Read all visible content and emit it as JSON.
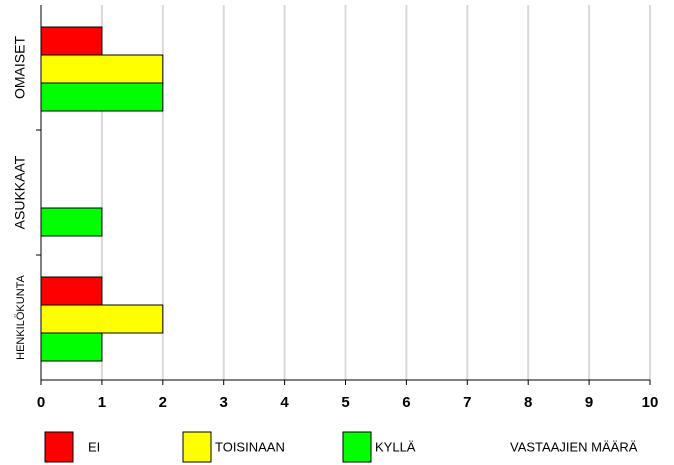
{
  "chart_data": {
    "type": "barh",
    "categories": [
      "OMAISET",
      "ASUKKAAT",
      "HENKILÖKUNTA"
    ],
    "series": [
      {
        "name": "EI",
        "color": "#ff0000",
        "values": [
          1,
          0,
          1
        ]
      },
      {
        "name": "TOISINAAN",
        "color": "#ffff00",
        "values": [
          2,
          0,
          2
        ]
      },
      {
        "name": "KYLLÄ",
        "color": "#00ff00",
        "values": [
          2,
          1,
          1
        ]
      }
    ],
    "xlabel": "VASTAAJIEN MÄÄRÄ",
    "xlim": [
      0,
      10
    ],
    "xticks": [
      0,
      1,
      2,
      3,
      4,
      5,
      6,
      7,
      8,
      9,
      10
    ],
    "grid": true
  }
}
